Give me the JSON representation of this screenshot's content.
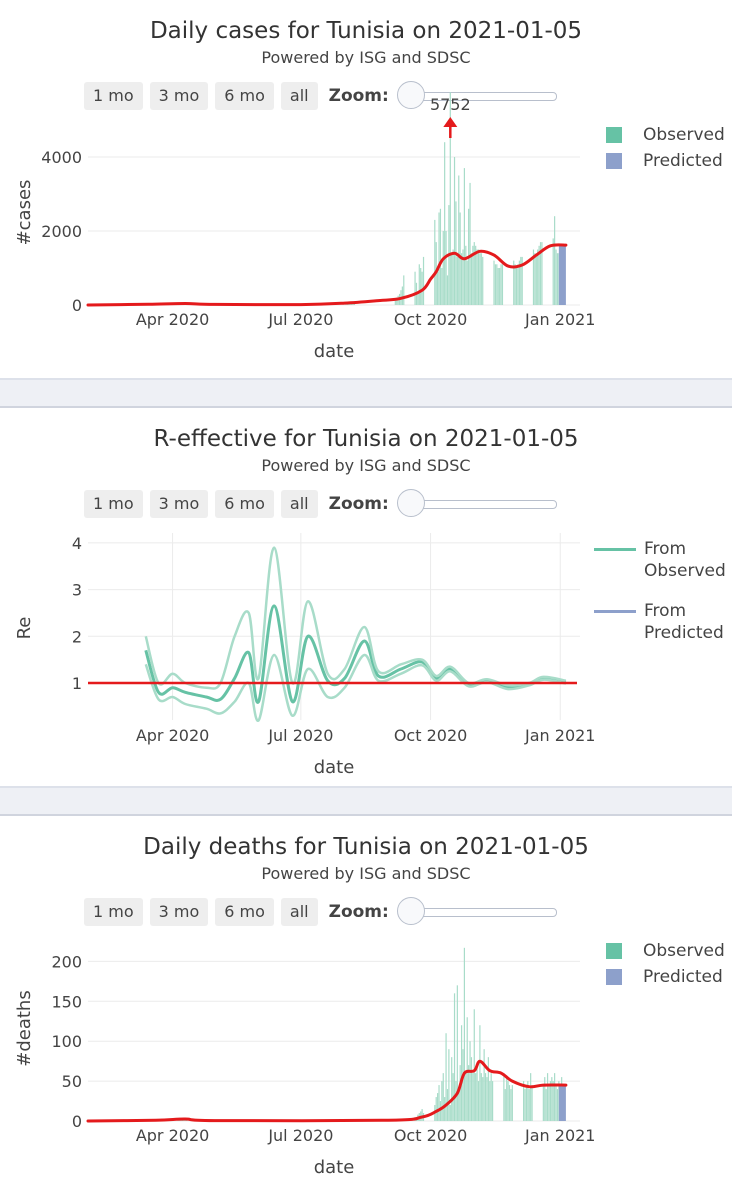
{
  "controls": {
    "buttons": [
      "1 mo",
      "3 mo",
      "6 mo",
      "all"
    ],
    "zoom_label": "Zoom:"
  },
  "colors": {
    "observed": "#66c2a5",
    "observed_light": "#a8dcc9",
    "predicted": "#8da0cb",
    "trend": "#e41a1c",
    "grid": "#ebebeb"
  },
  "charts": {
    "cases": {
      "title": "Daily cases for Tunisia on 2021-01-05",
      "subtitle": "Powered by ISG and SDSC",
      "ylabel": "#cases",
      "xlabel": "date",
      "legend": [
        "Observed",
        "Predicted"
      ],
      "annotation": "5752"
    },
    "re": {
      "title": "R-effective for Tunisia on 2021-01-05",
      "subtitle": "Powered by ISG and SDSC",
      "ylabel": "Re",
      "xlabel": "date",
      "legend": [
        "From Observed",
        "From Predicted"
      ]
    },
    "deaths": {
      "title": "Daily deaths for Tunisia on 2021-01-05",
      "subtitle": "Powered by ISG and SDSC",
      "ylabel": "#deaths",
      "xlabel": "date",
      "legend": [
        "Observed",
        "Predicted"
      ]
    }
  },
  "chart_data": [
    {
      "type": "bar",
      "title": "Daily cases for Tunisia on 2021-01-05",
      "subtitle": "Powered by ISG and SDSC",
      "xlabel": "date",
      "ylabel": "#cases",
      "x_range": [
        "2020-02-01",
        "2021-01-15"
      ],
      "ylim": [
        0,
        5000
      ],
      "yticks": [
        0,
        2000,
        4000
      ],
      "xticks": [
        "2020-04-01",
        "2020-07-01",
        "2020-10-01",
        "2021-01-01"
      ],
      "xtick_labels": [
        "Apr 2020",
        "Jul 2020",
        "Oct 2020",
        "Jan 2021"
      ],
      "legend_position": "top-right",
      "annotation": {
        "date": "2020-10-15",
        "value": 5752,
        "label": "5752"
      },
      "observed_weekly": [
        {
          "week_start": "2020-03-01",
          "values": [
            5,
            10,
            15,
            20,
            20,
            25,
            30
          ]
        },
        {
          "week_start": "2020-03-29",
          "values": [
            30,
            40,
            40,
            35,
            30,
            20,
            15
          ]
        },
        {
          "week_start": "2020-08-02",
          "values": [
            10,
            20,
            30,
            40,
            60,
            80,
            100
          ]
        },
        {
          "week_start": "2020-09-06",
          "values": [
            150,
            200,
            250,
            300,
            400,
            500,
            800
          ]
        },
        {
          "week_start": "2020-09-20",
          "values": [
            900,
            600,
            300,
            1100,
            1000,
            900,
            1300
          ]
        },
        {
          "week_start": "2020-10-04",
          "values": [
            2300,
            1700,
            900,
            2500,
            2600,
            1000,
            2000
          ]
        },
        {
          "week_start": "2020-10-11",
          "values": [
            4400,
            2000,
            800,
            2700,
            5752,
            1400,
            1500
          ]
        },
        {
          "week_start": "2020-10-18",
          "values": [
            4000,
            2800,
            1300,
            3500,
            2500,
            1400,
            1500
          ]
        },
        {
          "week_start": "2020-10-25",
          "values": [
            3700,
            1600,
            1200,
            2600,
            3300,
            1400,
            1600
          ]
        },
        {
          "week_start": "2020-11-01",
          "values": [
            1700,
            1600,
            1500,
            1500,
            1400,
            1400,
            1300
          ]
        },
        {
          "week_start": "2020-11-15",
          "values": [
            1200,
            1100,
            1100,
            1000,
            1000,
            1100,
            1100
          ]
        },
        {
          "week_start": "2020-11-29",
          "values": [
            1200,
            1100,
            1000,
            1100,
            1200,
            1300,
            1300
          ]
        },
        {
          "week_start": "2020-12-13",
          "values": [
            1500,
            1400,
            1300,
            1500,
            1600,
            1700,
            1700
          ]
        },
        {
          "week_start": "2020-12-27",
          "values": [
            1800,
            2400,
            1500,
            1400,
            1400,
            1500,
            1600
          ]
        }
      ],
      "predicted": {
        "from": "2020-12-31",
        "to": "2021-01-05",
        "value": 1620
      },
      "trend_line": [
        {
          "x": "2020-02-01",
          "y": 0
        },
        {
          "x": "2020-03-15",
          "y": 20
        },
        {
          "x": "2020-04-10",
          "y": 40
        },
        {
          "x": "2020-05-01",
          "y": 15
        },
        {
          "x": "2020-07-01",
          "y": 10
        },
        {
          "x": "2020-08-01",
          "y": 50
        },
        {
          "x": "2020-08-25",
          "y": 120
        },
        {
          "x": "2020-09-10",
          "y": 180
        },
        {
          "x": "2020-09-25",
          "y": 400
        },
        {
          "x": "2020-10-01",
          "y": 700
        },
        {
          "x": "2020-10-05",
          "y": 900
        },
        {
          "x": "2020-10-10",
          "y": 1250
        },
        {
          "x": "2020-10-18",
          "y": 1400
        },
        {
          "x": "2020-10-25",
          "y": 1250
        },
        {
          "x": "2020-11-05",
          "y": 1450
        },
        {
          "x": "2020-11-15",
          "y": 1350
        },
        {
          "x": "2020-11-25",
          "y": 1050
        },
        {
          "x": "2020-12-05",
          "y": 1080
        },
        {
          "x": "2020-12-15",
          "y": 1350
        },
        {
          "x": "2020-12-25",
          "y": 1600
        },
        {
          "x": "2021-01-05",
          "y": 1620
        }
      ]
    },
    {
      "type": "line",
      "title": "R-effective for Tunisia on 2021-01-05",
      "subtitle": "Powered by ISG and SDSC",
      "xlabel": "date",
      "ylabel": "Re",
      "x_range": [
        "2020-02-01",
        "2021-01-15"
      ],
      "ylim": [
        0.6,
        4.3
      ],
      "yticks": [
        1,
        2,
        3,
        4
      ],
      "xticks": [
        "2020-04-01",
        "2020-07-01",
        "2020-10-01",
        "2021-01-01"
      ],
      "xtick_labels": [
        "Apr 2020",
        "Jul 2020",
        "Oct 2020",
        "Jan 2021"
      ],
      "grid": true,
      "legend_position": "top-right",
      "reference_line": 1,
      "series": [
        {
          "name": "From Observed",
          "role": "median",
          "points": [
            {
              "x": "2020-03-13",
              "y": 1.7
            },
            {
              "x": "2020-03-22",
              "y": 0.8
            },
            {
              "x": "2020-04-01",
              "y": 0.9
            },
            {
              "x": "2020-04-10",
              "y": 0.8
            },
            {
              "x": "2020-04-25",
              "y": 0.7
            },
            {
              "x": "2020-05-05",
              "y": 0.65
            },
            {
              "x": "2020-05-15",
              "y": 1.1
            },
            {
              "x": "2020-05-25",
              "y": 1.65
            },
            {
              "x": "2020-06-01",
              "y": 0.6
            },
            {
              "x": "2020-06-12",
              "y": 2.65
            },
            {
              "x": "2020-06-25",
              "y": 0.6
            },
            {
              "x": "2020-07-06",
              "y": 2.0
            },
            {
              "x": "2020-07-20",
              "y": 1.05
            },
            {
              "x": "2020-08-01",
              "y": 1.1
            },
            {
              "x": "2020-08-15",
              "y": 1.9
            },
            {
              "x": "2020-08-25",
              "y": 1.15
            },
            {
              "x": "2020-09-10",
              "y": 1.3
            },
            {
              "x": "2020-09-25",
              "y": 1.45
            },
            {
              "x": "2020-10-05",
              "y": 1.1
            },
            {
              "x": "2020-10-15",
              "y": 1.3
            },
            {
              "x": "2020-10-28",
              "y": 0.97
            },
            {
              "x": "2020-11-10",
              "y": 1.05
            },
            {
              "x": "2020-11-25",
              "y": 0.9
            },
            {
              "x": "2020-12-10",
              "y": 0.98
            },
            {
              "x": "2020-12-20",
              "y": 1.1
            },
            {
              "x": "2021-01-05",
              "y": 1.02
            }
          ]
        },
        {
          "name": "From Observed",
          "role": "upper",
          "points": [
            {
              "x": "2020-03-13",
              "y": 2.0
            },
            {
              "x": "2020-03-22",
              "y": 1.0
            },
            {
              "x": "2020-04-01",
              "y": 1.2
            },
            {
              "x": "2020-04-10",
              "y": 1.0
            },
            {
              "x": "2020-04-25",
              "y": 0.9
            },
            {
              "x": "2020-05-05",
              "y": 1.0
            },
            {
              "x": "2020-05-15",
              "y": 2.0
            },
            {
              "x": "2020-05-25",
              "y": 2.5
            },
            {
              "x": "2020-06-01",
              "y": 1.1
            },
            {
              "x": "2020-06-12",
              "y": 3.9
            },
            {
              "x": "2020-06-25",
              "y": 1.0
            },
            {
              "x": "2020-07-06",
              "y": 2.75
            },
            {
              "x": "2020-07-20",
              "y": 1.2
            },
            {
              "x": "2020-08-01",
              "y": 1.3
            },
            {
              "x": "2020-08-15",
              "y": 2.2
            },
            {
              "x": "2020-08-25",
              "y": 1.25
            },
            {
              "x": "2020-09-10",
              "y": 1.4
            },
            {
              "x": "2020-09-25",
              "y": 1.5
            },
            {
              "x": "2020-10-05",
              "y": 1.15
            },
            {
              "x": "2020-10-15",
              "y": 1.35
            },
            {
              "x": "2020-10-28",
              "y": 1.0
            },
            {
              "x": "2020-11-10",
              "y": 1.08
            },
            {
              "x": "2020-11-25",
              "y": 0.95
            },
            {
              "x": "2020-12-10",
              "y": 1.0
            },
            {
              "x": "2020-12-20",
              "y": 1.13
            },
            {
              "x": "2021-01-05",
              "y": 1.05
            }
          ]
        },
        {
          "name": "From Observed",
          "role": "lower",
          "points": [
            {
              "x": "2020-03-13",
              "y": 1.4
            },
            {
              "x": "2020-03-22",
              "y": 0.65
            },
            {
              "x": "2020-04-01",
              "y": 0.7
            },
            {
              "x": "2020-04-10",
              "y": 0.55
            },
            {
              "x": "2020-04-25",
              "y": 0.45
            },
            {
              "x": "2020-05-05",
              "y": 0.35
            },
            {
              "x": "2020-05-15",
              "y": 0.6
            },
            {
              "x": "2020-05-25",
              "y": 1.0
            },
            {
              "x": "2020-06-01",
              "y": 0.2
            },
            {
              "x": "2020-06-12",
              "y": 1.6
            },
            {
              "x": "2020-06-25",
              "y": 0.3
            },
            {
              "x": "2020-07-06",
              "y": 1.3
            },
            {
              "x": "2020-07-20",
              "y": 0.7
            },
            {
              "x": "2020-08-01",
              "y": 0.9
            },
            {
              "x": "2020-08-15",
              "y": 1.6
            },
            {
              "x": "2020-08-25",
              "y": 1.05
            },
            {
              "x": "2020-09-10",
              "y": 1.2
            },
            {
              "x": "2020-09-25",
              "y": 1.38
            },
            {
              "x": "2020-10-05",
              "y": 1.05
            },
            {
              "x": "2020-10-15",
              "y": 1.25
            },
            {
              "x": "2020-10-28",
              "y": 0.93
            },
            {
              "x": "2020-11-10",
              "y": 1.02
            },
            {
              "x": "2020-11-25",
              "y": 0.87
            },
            {
              "x": "2020-12-10",
              "y": 0.95
            },
            {
              "x": "2020-12-20",
              "y": 1.07
            },
            {
              "x": "2021-01-05",
              "y": 0.99
            }
          ]
        },
        {
          "name": "From Predicted",
          "role": "median",
          "points": []
        }
      ]
    },
    {
      "type": "bar",
      "title": "Daily deaths for Tunisia on 2021-01-05",
      "subtitle": "Powered by ISG and SDSC",
      "xlabel": "date",
      "ylabel": "#deaths",
      "x_range": [
        "2020-02-01",
        "2021-01-15"
      ],
      "ylim": [
        0,
        230
      ],
      "yticks": [
        0,
        50,
        100,
        150,
        200
      ],
      "xticks": [
        "2020-04-01",
        "2020-07-01",
        "2020-10-01",
        "2021-01-01"
      ],
      "xtick_labels": [
        "Apr 2020",
        "Jul 2020",
        "Oct 2020",
        "Jan 2021"
      ],
      "legend_position": "top-right",
      "observed_weekly": [
        {
          "week_start": "2020-03-22",
          "values": [
            1,
            2,
            3,
            3,
            2,
            2,
            1
          ]
        },
        {
          "week_start": "2020-04-05",
          "values": [
            3,
            4,
            3,
            2,
            2,
            1,
            1
          ]
        },
        {
          "week_start": "2020-09-20",
          "values": [
            5,
            4,
            8,
            10,
            12,
            15,
            10
          ]
        },
        {
          "week_start": "2020-10-04",
          "values": [
            20,
            30,
            35,
            45,
            25,
            50,
            60
          ]
        },
        {
          "week_start": "2020-10-11",
          "values": [
            30,
            110,
            40,
            90,
            20,
            80,
            60
          ]
        },
        {
          "week_start": "2020-10-18",
          "values": [
            160,
            50,
            170,
            40,
            70,
            120,
            90
          ]
        },
        {
          "week_start": "2020-10-25",
          "values": [
            217,
            60,
            130,
            70,
            100,
            80,
            60
          ]
        },
        {
          "week_start": "2020-11-01",
          "values": [
            140,
            60,
            70,
            50,
            120,
            60,
            55
          ]
        },
        {
          "week_start": "2020-11-08",
          "values": [
            90,
            60,
            55,
            80,
            50,
            60,
            50
          ]
        },
        {
          "week_start": "2020-11-22",
          "values": [
            60,
            40,
            55,
            50,
            45,
            40,
            45
          ]
        },
        {
          "week_start": "2020-12-06",
          "values": [
            50,
            40,
            45,
            50,
            40,
            60,
            45
          ]
        },
        {
          "week_start": "2020-12-20",
          "values": [
            45,
            55,
            40,
            60,
            45,
            50,
            55
          ]
        },
        {
          "week_start": "2020-12-27",
          "values": [
            50,
            60,
            45,
            40,
            50,
            45,
            55
          ]
        }
      ],
      "predicted": {
        "from": "2020-12-31",
        "to": "2021-01-05",
        "value": 45
      },
      "trend_line": [
        {
          "x": "2020-02-01",
          "y": 0
        },
        {
          "x": "2020-03-20",
          "y": 1
        },
        {
          "x": "2020-04-10",
          "y": 2.5
        },
        {
          "x": "2020-05-01",
          "y": 0.5
        },
        {
          "x": "2020-09-01",
          "y": 1
        },
        {
          "x": "2020-09-25",
          "y": 5
        },
        {
          "x": "2020-10-05",
          "y": 12
        },
        {
          "x": "2020-10-12",
          "y": 20
        },
        {
          "x": "2020-10-20",
          "y": 35
        },
        {
          "x": "2020-10-25",
          "y": 60
        },
        {
          "x": "2020-11-01",
          "y": 63
        },
        {
          "x": "2020-11-05",
          "y": 75
        },
        {
          "x": "2020-11-12",
          "y": 63
        },
        {
          "x": "2020-11-20",
          "y": 60
        },
        {
          "x": "2020-11-28",
          "y": 50
        },
        {
          "x": "2020-12-10",
          "y": 43
        },
        {
          "x": "2020-12-20",
          "y": 45
        },
        {
          "x": "2021-01-05",
          "y": 45
        }
      ]
    }
  ]
}
